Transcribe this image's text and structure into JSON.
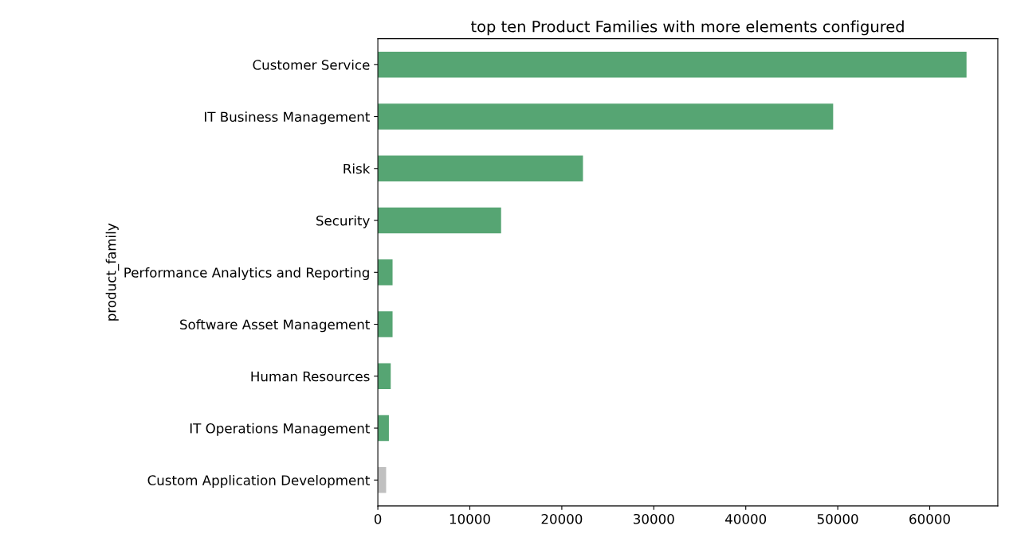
{
  "chart_data": {
    "type": "bar",
    "orientation": "horizontal",
    "title": "top ten Product Families with more elements configured",
    "ylabel": "product_family",
    "categories": [
      "Customer Service",
      "IT Business Management",
      "Risk",
      "Security",
      "Performance Analytics and Reporting",
      "Software Asset Management",
      "Human Resources",
      "IT Operations Management",
      "Custom Application Development"
    ],
    "values": [
      64000,
      49500,
      22300,
      13400,
      1600,
      1600,
      1400,
      1200,
      900
    ],
    "colors": [
      "#56a573",
      "#56a573",
      "#56a573",
      "#56a573",
      "#56a573",
      "#56a573",
      "#56a573",
      "#56a573",
      "#c0c0c0"
    ],
    "xlim": [
      0,
      67400
    ],
    "xticks": [
      0,
      10000,
      20000,
      30000,
      40000,
      50000,
      60000
    ],
    "grid": false,
    "legend": false
  }
}
